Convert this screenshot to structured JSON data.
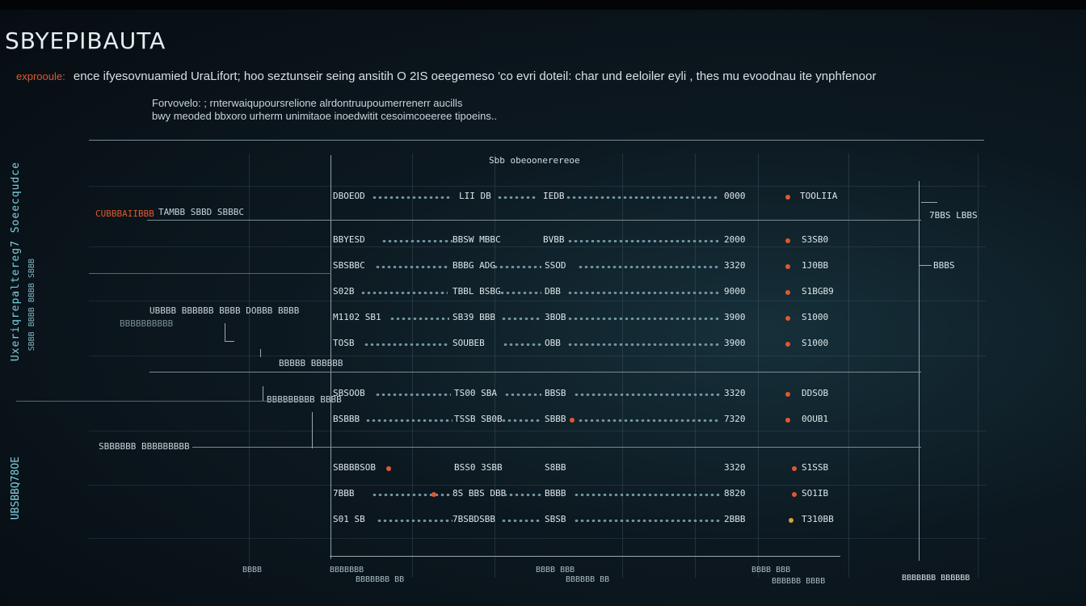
{
  "header": {
    "title": "SBYEPIBAUTA",
    "subtitle_label": "exprooule:",
    "subtitle": "ence ifyesovnuamied UraLifort; hoo seztunseir seing ansitih O 2IS oeegemeso 'co evri doteil: char und eeloiler eyli , thes mu evoodnau ite ynphfenoor",
    "desc_line1": "Forvovelo:  ;  rnterwaiqupoursrelione alrdontruupoumerrenerr aucills",
    "desc_line2": "bwy meoded  bbxoro urherm unimitaoe inoedwitit cesoimcoeeree tipoeins.."
  },
  "table": {
    "column_header": "Sbb  obeoonerereoe",
    "header_row": [
      "DBOEOD",
      "LII DB",
      "IEDB",
      "0000",
      "TOOLIIA"
    ],
    "rows": [
      [
        "BBYESD",
        "BBSW MBBC",
        "BVBB",
        "2000",
        "S3SB0"
      ],
      [
        "SBSBBC",
        "BBBG ADG",
        "SSOD",
        "3320",
        "1J0BB"
      ],
      [
        "S02B",
        "TBBL BSBG",
        "DBB",
        "9000",
        "S1BGB9"
      ],
      [
        "M1102 SB1",
        "SB39 BBB",
        "3BOB",
        "3900",
        "S1000"
      ],
      [
        "TOSB",
        "SOUBEB",
        "OBB",
        "3900",
        "S1000"
      ],
      [
        "SBSOOB",
        "TS00 SBA",
        "BBSB",
        "3320",
        "DDSOB"
      ],
      [
        "BSBBB",
        "TSSB SB0B",
        "SBBB",
        "7320",
        "0OUB1"
      ],
      [
        "SBBBBSOB",
        "BSS0 3SBB",
        "S8BB",
        "3320",
        "S1SSB"
      ],
      [
        "7BBB",
        "8S BBS DBB",
        "BBBB",
        "8820",
        "SO1IB"
      ],
      [
        "S01 SB",
        "7BSBDSBB",
        "SBSB",
        "2BBB",
        "T310BB"
      ]
    ]
  },
  "left_labels": {
    "main": "CUBBBAIIBBB",
    "main_secondary": "TAMBB SBBD SBBBC",
    "mid1": "UBBBB BBBBBB BBBB   DOBBB BBBB",
    "mid1b": "BBBBBBBBBB",
    "mid2": "BBBBB BBBBBB",
    "mid3": "BBBBBBBBB BBBB",
    "bottom": "SBBBBBB BBBBBBBBB"
  },
  "right_labels": {
    "top": "7BBS   LBBS",
    "second": "BBBS",
    "bottom": "BBBBBBB BBBBBB"
  },
  "axis_labels": [
    "BBBB",
    "BBBBBBB",
    "BBBBBBB BB",
    "BBBB BBB",
    "BBBBBB BB",
    "BBBB BBB",
    "BBBBBB BBBB"
  ],
  "side_text": {
    "left_main": "Uxeriqrepaltereg7 Soeecqudce",
    "left_small": "SBBB BBBB BBBB SBBB",
    "left_bottom": "UBSBBQ78OE"
  },
  "colors": {
    "accent": "#e0582f",
    "cyan": "#7fd0e0",
    "dot": "#6f93a0"
  }
}
